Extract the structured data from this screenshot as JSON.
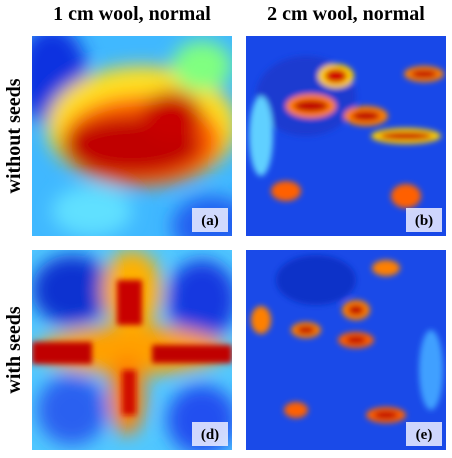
{
  "column_titles": [
    "1 cm wool, normal",
    "2 cm wool, normal"
  ],
  "row_labels": [
    "without seeds",
    "with seeds"
  ],
  "panels": [
    {
      "label": "(a)"
    },
    {
      "label": "(b)"
    },
    {
      "label": "(d)"
    },
    {
      "label": "(e)"
    }
  ]
}
